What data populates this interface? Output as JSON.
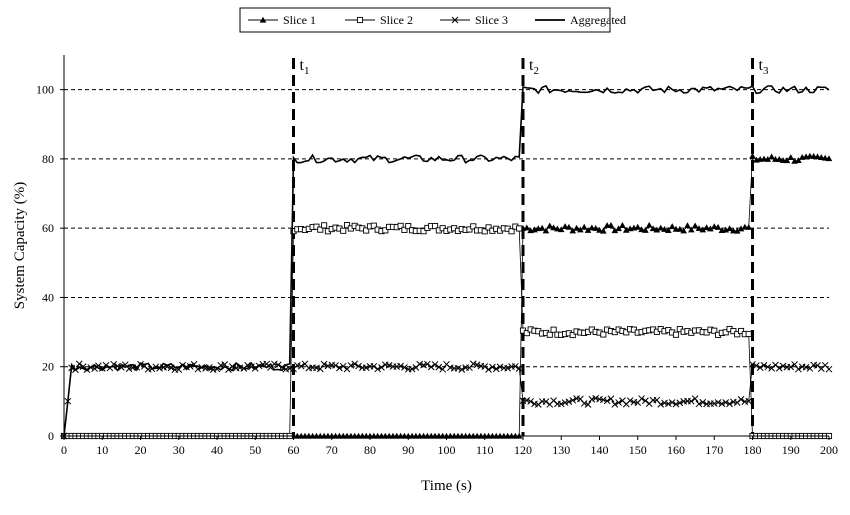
{
  "chart_data": {
    "type": "line",
    "xlabel": "Time  (s)",
    "ylabel": "System Capacity (%)",
    "xlim": [
      0,
      200
    ],
    "ylim": [
      0,
      110
    ],
    "xticks": [
      0,
      10,
      20,
      30,
      40,
      50,
      60,
      70,
      80,
      90,
      100,
      110,
      120,
      130,
      140,
      150,
      160,
      170,
      180,
      190,
      200
    ],
    "yticks": [
      0,
      20,
      40,
      60,
      80,
      100
    ],
    "grid": "horizontal dashed at y ticks",
    "legend_position": "top-center",
    "event_lines": [
      {
        "label": "t",
        "sub": "1",
        "x": 60
      },
      {
        "label": "t",
        "sub": "2",
        "x": 120
      },
      {
        "label": "t",
        "sub": "3",
        "x": 180
      }
    ],
    "series": [
      {
        "name": "Slice 1",
        "marker": "triangle",
        "points": [
          [
            0,
            0
          ],
          [
            59,
            0
          ],
          [
            60,
            0
          ],
          [
            119,
            0
          ],
          [
            120,
            60
          ],
          [
            179,
            60
          ],
          [
            180,
            80
          ],
          [
            200,
            80
          ]
        ]
      },
      {
        "name": "Slice 2",
        "marker": "square",
        "points": [
          [
            0,
            0
          ],
          [
            59,
            0
          ],
          [
            60,
            60
          ],
          [
            119,
            60
          ],
          [
            120,
            30
          ],
          [
            179,
            30
          ],
          [
            180,
            0
          ],
          [
            200,
            0
          ]
        ]
      },
      {
        "name": "Slice 3",
        "marker": "x",
        "points": [
          [
            0,
            0
          ],
          [
            1,
            10
          ],
          [
            2,
            20
          ],
          [
            59,
            20
          ],
          [
            60,
            20
          ],
          [
            119,
            20
          ],
          [
            120,
            10
          ],
          [
            179,
            10
          ],
          [
            180,
            20
          ],
          [
            200,
            20
          ]
        ]
      },
      {
        "name": "Aggregated",
        "marker": "none",
        "points": [
          [
            0,
            0
          ],
          [
            1,
            10
          ],
          [
            2,
            20
          ],
          [
            59,
            20
          ],
          [
            60,
            80
          ],
          [
            119,
            80
          ],
          [
            120,
            100
          ],
          [
            179,
            100
          ],
          [
            180,
            100
          ],
          [
            200,
            100
          ]
        ]
      }
    ]
  }
}
